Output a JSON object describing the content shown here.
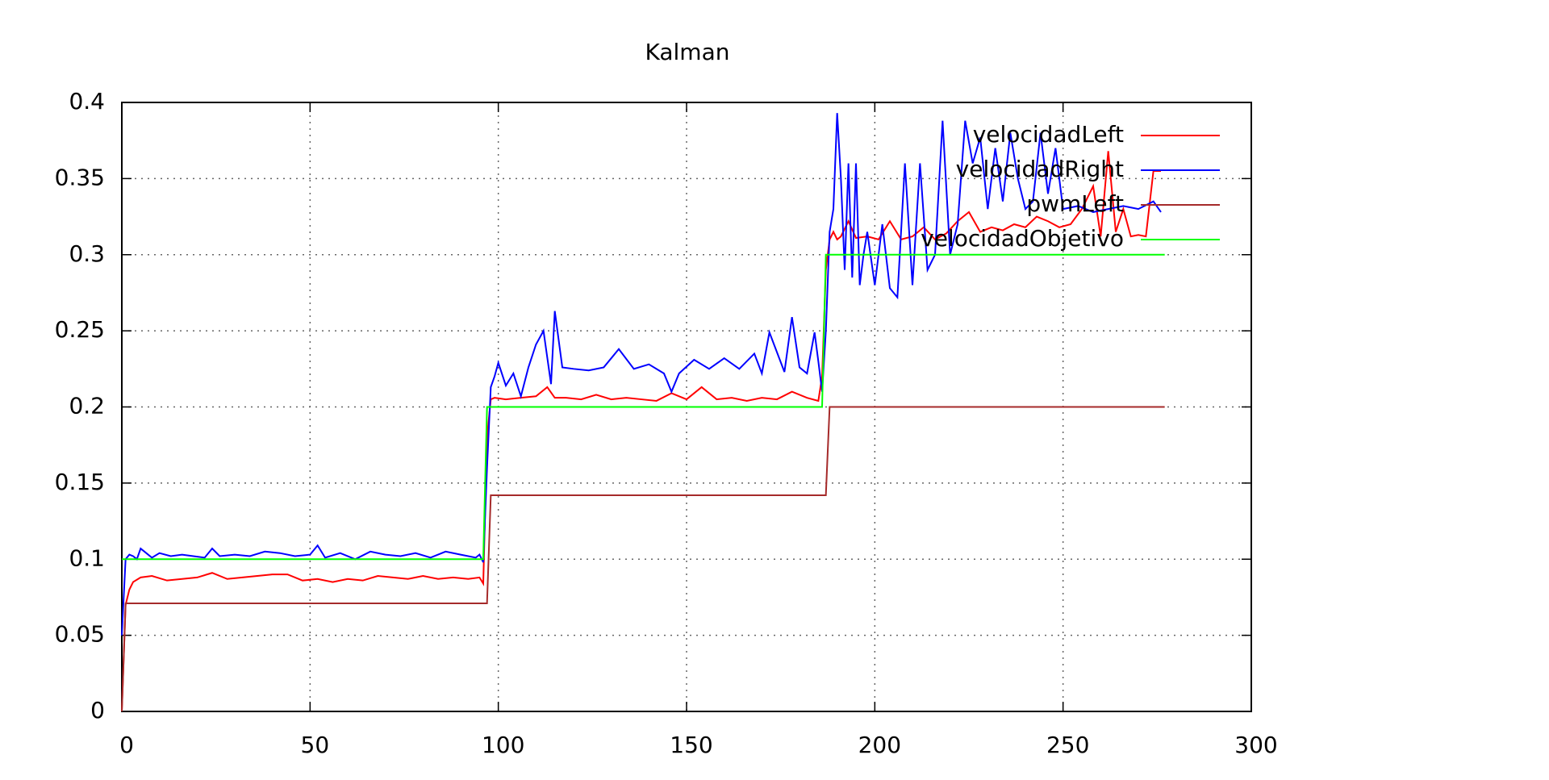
{
  "chart_data": {
    "type": "line",
    "title": "Kalman",
    "xlim": [
      0,
      300
    ],
    "xticks": [
      0,
      50,
      100,
      150,
      200,
      250,
      300
    ],
    "ylim": [
      0,
      0.4
    ],
    "yticks": [
      0,
      0.05,
      0.1,
      0.15,
      0.2,
      0.25,
      0.3,
      0.35,
      0.4
    ],
    "grid": true,
    "legend": "upper right",
    "series": [
      {
        "name": "velocidadLeft",
        "color": "#ff0000",
        "x": [
          0,
          1,
          2,
          3,
          5,
          8,
          12,
          16,
          20,
          24,
          28,
          32,
          36,
          40,
          44,
          48,
          52,
          56,
          60,
          64,
          68,
          72,
          76,
          80,
          84,
          88,
          92,
          95,
          96,
          97,
          98,
          99,
          102,
          106,
          110,
          113,
          115,
          118,
          122,
          126,
          130,
          134,
          138,
          142,
          146,
          150,
          154,
          158,
          162,
          166,
          170,
          174,
          178,
          182,
          185,
          186,
          187,
          188,
          189,
          190,
          191,
          193,
          195,
          198,
          201,
          204,
          207,
          210,
          213,
          216,
          219,
          222,
          225,
          228,
          231,
          234,
          237,
          240,
          243,
          246,
          249,
          252,
          255,
          258,
          260,
          262,
          264,
          266,
          268,
          270,
          272,
          274,
          276
        ],
        "values": [
          0,
          0.07,
          0.08,
          0.085,
          0.088,
          0.089,
          0.086,
          0.087,
          0.088,
          0.091,
          0.087,
          0.088,
          0.089,
          0.09,
          0.09,
          0.086,
          0.087,
          0.085,
          0.087,
          0.086,
          0.089,
          0.088,
          0.087,
          0.089,
          0.087,
          0.088,
          0.087,
          0.088,
          0.084,
          0.18,
          0.205,
          0.206,
          0.205,
          0.206,
          0.207,
          0.213,
          0.206,
          0.206,
          0.205,
          0.208,
          0.205,
          0.206,
          0.205,
          0.204,
          0.209,
          0.205,
          0.213,
          0.205,
          0.206,
          0.204,
          0.206,
          0.205,
          0.21,
          0.206,
          0.204,
          0.22,
          0.29,
          0.31,
          0.315,
          0.31,
          0.312,
          0.322,
          0.311,
          0.312,
          0.31,
          0.322,
          0.31,
          0.312,
          0.318,
          0.31,
          0.314,
          0.322,
          0.328,
          0.315,
          0.318,
          0.316,
          0.32,
          0.318,
          0.325,
          0.322,
          0.318,
          0.32,
          0.33,
          0.345,
          0.312,
          0.368,
          0.315,
          0.33,
          0.312,
          0.313,
          0.312,
          0.355,
          0.355
        ]
      },
      {
        "name": "velocidadRight",
        "color": "#0000ff",
        "x": [
          0,
          1,
          2,
          3,
          4,
          5,
          6,
          8,
          10,
          13,
          16,
          19,
          22,
          24,
          26,
          30,
          34,
          38,
          42,
          46,
          50,
          52,
          54,
          58,
          62,
          66,
          70,
          74,
          78,
          82,
          86,
          90,
          94,
          95,
          96,
          97,
          98,
          99,
          100,
          102,
          104,
          106,
          108,
          110,
          112,
          114,
          115,
          117,
          120,
          124,
          128,
          132,
          136,
          140,
          144,
          146,
          148,
          152,
          156,
          160,
          164,
          168,
          170,
          172,
          176,
          178,
          180,
          182,
          184,
          185,
          186,
          187,
          188,
          189,
          190,
          191,
          192,
          193,
          194,
          195,
          196,
          197,
          198,
          200,
          202,
          204,
          206,
          208,
          210,
          212,
          214,
          216,
          218,
          220,
          222,
          224,
          226,
          228,
          230,
          232,
          234,
          236,
          238,
          240,
          242,
          244,
          246,
          248,
          250,
          254,
          258,
          262,
          266,
          270,
          274,
          276
        ],
        "values": [
          0.05,
          0.1,
          0.103,
          0.102,
          0.1,
          0.107,
          0.105,
          0.101,
          0.104,
          0.102,
          0.103,
          0.102,
          0.101,
          0.107,
          0.102,
          0.103,
          0.102,
          0.105,
          0.104,
          0.102,
          0.103,
          0.109,
          0.101,
          0.104,
          0.1,
          0.105,
          0.103,
          0.102,
          0.104,
          0.101,
          0.105,
          0.103,
          0.101,
          0.103,
          0.098,
          0.16,
          0.213,
          0.22,
          0.229,
          0.214,
          0.222,
          0.207,
          0.226,
          0.241,
          0.25,
          0.215,
          0.263,
          0.226,
          0.225,
          0.224,
          0.226,
          0.238,
          0.225,
          0.228,
          0.222,
          0.21,
          0.222,
          0.231,
          0.225,
          0.232,
          0.225,
          0.235,
          0.222,
          0.249,
          0.223,
          0.259,
          0.226,
          0.222,
          0.249,
          0.23,
          0.21,
          0.25,
          0.315,
          0.33,
          0.393,
          0.35,
          0.29,
          0.36,
          0.285,
          0.36,
          0.28,
          0.3,
          0.315,
          0.28,
          0.32,
          0.278,
          0.272,
          0.36,
          0.28,
          0.36,
          0.29,
          0.3,
          0.388,
          0.3,
          0.32,
          0.388,
          0.36,
          0.377,
          0.33,
          0.37,
          0.335,
          0.38,
          0.35,
          0.33,
          0.335,
          0.38,
          0.34,
          0.37,
          0.33,
          0.332,
          0.328,
          0.33,
          0.332,
          0.33,
          0.335,
          0.328
        ]
      },
      {
        "name": "pwmLeft",
        "color": "#a52a2a",
        "x": [
          0,
          1,
          97,
          98,
          187,
          188,
          277
        ],
        "values": [
          0,
          0.071,
          0.071,
          0.142,
          0.142,
          0.2,
          0.2
        ]
      },
      {
        "name": "velocidadObjetivo",
        "color": "#00ff00",
        "x": [
          0,
          96,
          97,
          186,
          187,
          277
        ],
        "values": [
          0.1,
          0.1,
          0.2,
          0.2,
          0.3,
          0.3
        ]
      }
    ]
  }
}
